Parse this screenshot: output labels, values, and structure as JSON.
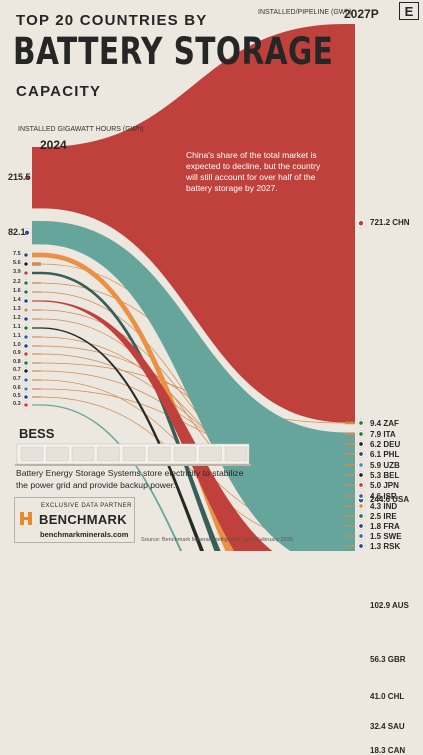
{
  "header": {
    "title_top": "TOP 20 COUNTRIES BY",
    "title_main": "BATTERY STORAGE",
    "title_sub": "CAPACITY",
    "logo": "E",
    "left_unit": "INSTALLED GIGAWATT HOURS (GWh)",
    "left_year": "2024",
    "right_unit": "INSTALLED/PIPELINE (GWh)",
    "right_year": "2027P"
  },
  "annotation": "China's share of the total market is expected to decline, but the country will still account for over half of the battery storage by 2027.",
  "bess": {
    "title": "BESS",
    "description": "Battery Energy Storage Systems store electricity to stabilize the power grid and provide backup power.",
    "icon": "battery-container-illustration"
  },
  "partner": {
    "label": "EXCLUSIVE DATA PARTNER",
    "name": "BENCHMARK",
    "site": "benchmarkminerals.com",
    "icon": "benchmark-logo-icon"
  },
  "source": "Source: Benchmark Mineral Intelligence, as of February 2025.",
  "colors": {
    "china": "#c0413b",
    "usa": "#66a59b",
    "australia": "#c0413b",
    "uk": "#eb9145",
    "chile": "#375e58",
    "saudi": "#262a27",
    "canada": "#66a59b",
    "minor": "#d08a55",
    "background": "#ece8df"
  },
  "chart_data": {
    "type": "sankey",
    "x": [
      "2024",
      "2027P"
    ],
    "series": [
      {
        "name": "CHN",
        "values": [
          215.5,
          721.2
        ],
        "flag": "china-flag-icon"
      },
      {
        "name": "USA",
        "values": [
          82.1,
          244.6
        ],
        "flag": "usa-flag-icon"
      },
      {
        "name": "AUS",
        "values": [
          1.4,
          102.9
        ],
        "flag": "australia-flag-icon"
      },
      {
        "name": "GBR",
        "values": [
          7.5,
          56.3
        ],
        "flag": "uk-flag-icon"
      },
      {
        "name": "CHL",
        "values": [
          3.9,
          41.0
        ],
        "flag": "chile-flag-icon"
      },
      {
        "name": "SAU",
        "values": [
          1.1,
          32.4
        ],
        "flag": "saudi-flag-icon"
      },
      {
        "name": "CAN",
        "values": [
          0.3,
          18.3
        ],
        "flag": "canada-flag-icon"
      },
      {
        "name": "ZAF",
        "values": [
          0.8,
          9.4
        ],
        "flag": "south-africa-flag-icon"
      },
      {
        "name": "ITA",
        "values": [
          2.2,
          7.9
        ],
        "flag": "italy-flag-icon"
      },
      {
        "name": "DEU",
        "values": [
          5.6,
          6.2
        ],
        "flag": "germany-flag-icon"
      },
      {
        "name": "PHL",
        "values": [
          1.0,
          6.1
        ],
        "flag": "philippines-flag-icon"
      },
      {
        "name": "UZB",
        "values": [
          0.6,
          5.9
        ],
        "flag": "uzbekistan-flag-icon"
      },
      {
        "name": "BEL",
        "values": [
          0.7,
          5.3
        ],
        "flag": "belgium-flag-icon"
      },
      {
        "name": "JPN",
        "values": [
          0.9,
          5.0
        ],
        "flag": "japan-flag-icon"
      },
      {
        "name": "ISR",
        "values": [
          1.1,
          4.6
        ],
        "flag": "israel-flag-icon"
      },
      {
        "name": "IND",
        "values": [
          1.3,
          4.3
        ],
        "flag": "india-flag-icon"
      },
      {
        "name": "IRE",
        "values": [
          1.6,
          2.5
        ],
        "flag": "ireland-flag-icon"
      },
      {
        "name": "FRA",
        "values": [
          1.2,
          1.8
        ],
        "flag": "france-flag-icon"
      },
      {
        "name": "SWE",
        "values": [
          0.7,
          1.5
        ],
        "flag": "sweden-flag-icon"
      },
      {
        "name": "RSK",
        "values": [
          0.5,
          1.3
        ],
        "flag": "south-korea-flag-icon"
      }
    ],
    "left_labels": [
      "215.5",
      "82.1",
      "7.5",
      "5.6",
      "3.9",
      "2.2",
      "1.6",
      "1.4",
      "1.3",
      "1.2",
      "1.1",
      "1.1",
      "1.0",
      "0.9",
      "0.8",
      "0.7",
      "0.7",
      "0.6",
      "0.5",
      "0.3"
    ],
    "right_labels": [
      "721.2",
      "244.6",
      "102.9",
      "56.3",
      "41.0",
      "32.4",
      "18.3",
      "9.4",
      "7.9",
      "6.2",
      "6.1",
      "5.9",
      "5.3",
      "5.0",
      "4.6",
      "4.3",
      "2.5",
      "1.8",
      "1.5",
      "1.3"
    ]
  }
}
